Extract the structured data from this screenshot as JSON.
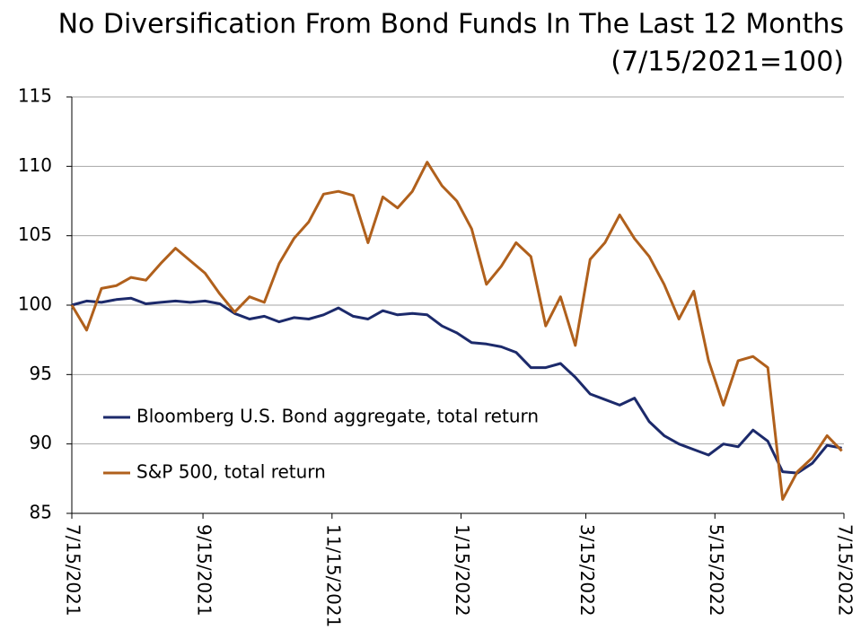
{
  "chart_data": {
    "type": "line",
    "title": "No Diversification From Bond Funds In The Last 12 Months",
    "subtitle": "(7/15/2021=100)",
    "x": [
      "7/15/2021",
      "7/22/2021",
      "7/29/2021",
      "8/5/2021",
      "8/12/2021",
      "8/19/2021",
      "8/26/2021",
      "9/2/2021",
      "9/9/2021",
      "9/16/2021",
      "9/23/2021",
      "9/30/2021",
      "10/7/2021",
      "10/14/2021",
      "10/21/2021",
      "10/28/2021",
      "11/4/2021",
      "11/11/2021",
      "11/18/2021",
      "11/25/2021",
      "12/2/2021",
      "12/9/2021",
      "12/16/2021",
      "12/23/2021",
      "12/30/2021",
      "1/6/2022",
      "1/13/2022",
      "1/20/2022",
      "1/27/2022",
      "2/3/2022",
      "2/10/2022",
      "2/17/2022",
      "2/24/2022",
      "3/3/2022",
      "3/10/2022",
      "3/17/2022",
      "3/24/2022",
      "3/31/2022",
      "4/7/2022",
      "4/14/2022",
      "4/21/2022",
      "4/28/2022",
      "5/5/2022",
      "5/12/2022",
      "5/19/2022",
      "5/26/2022",
      "6/2/2022",
      "6/9/2022",
      "6/16/2022",
      "6/23/2022",
      "6/30/2022",
      "7/7/2022",
      "7/14/2022"
    ],
    "series": [
      {
        "name": "Bloomberg U.S. Bond aggregate, total return",
        "color": "#1c2a6b",
        "values": [
          100,
          100.3,
          100.2,
          100.4,
          100.5,
          100.1,
          100.2,
          100.3,
          100.2,
          100.3,
          100.1,
          99.4,
          99.0,
          99.2,
          98.8,
          99.1,
          99.0,
          99.3,
          99.8,
          99.2,
          99.0,
          99.6,
          99.3,
          99.4,
          99.3,
          98.5,
          98.0,
          97.3,
          97.2,
          97.0,
          96.6,
          95.5,
          95.5,
          95.8,
          94.8,
          93.6,
          93.2,
          92.8,
          93.3,
          91.6,
          90.6,
          90.0,
          89.6,
          89.2,
          90.0,
          89.8,
          91.0,
          90.2,
          88.0,
          87.9,
          88.6,
          89.9,
          89.7
        ]
      },
      {
        "name": "S&P 500, total return",
        "color": "#b0601c",
        "values": [
          100,
          98.2,
          101.2,
          101.4,
          102.0,
          101.8,
          103.0,
          104.1,
          103.2,
          102.3,
          100.8,
          99.5,
          100.6,
          100.2,
          103.0,
          104.8,
          106.0,
          108.0,
          108.2,
          107.9,
          104.5,
          107.8,
          107.0,
          108.2,
          110.3,
          108.6,
          107.5,
          105.5,
          101.5,
          102.8,
          104.5,
          103.5,
          98.5,
          100.6,
          97.1,
          103.3,
          104.5,
          106.5,
          104.8,
          103.5,
          101.5,
          99.0,
          101.0,
          96.0,
          92.8,
          96.0,
          96.3,
          95.5,
          86.0,
          88.0,
          89.0,
          90.6,
          89.5
        ]
      }
    ],
    "xlim": [
      "7/15/2021",
      "7/15/2022"
    ],
    "xticks": [
      "7/15/2021",
      "9/15/2021",
      "11/15/2021",
      "1/15/2022",
      "3/15/2022",
      "5/15/2022",
      "7/15/2022"
    ],
    "ylim": [
      85,
      115
    ],
    "yticks": [
      85,
      90,
      95,
      100,
      105,
      110,
      115
    ],
    "grid": true,
    "legend": "lower left"
  }
}
